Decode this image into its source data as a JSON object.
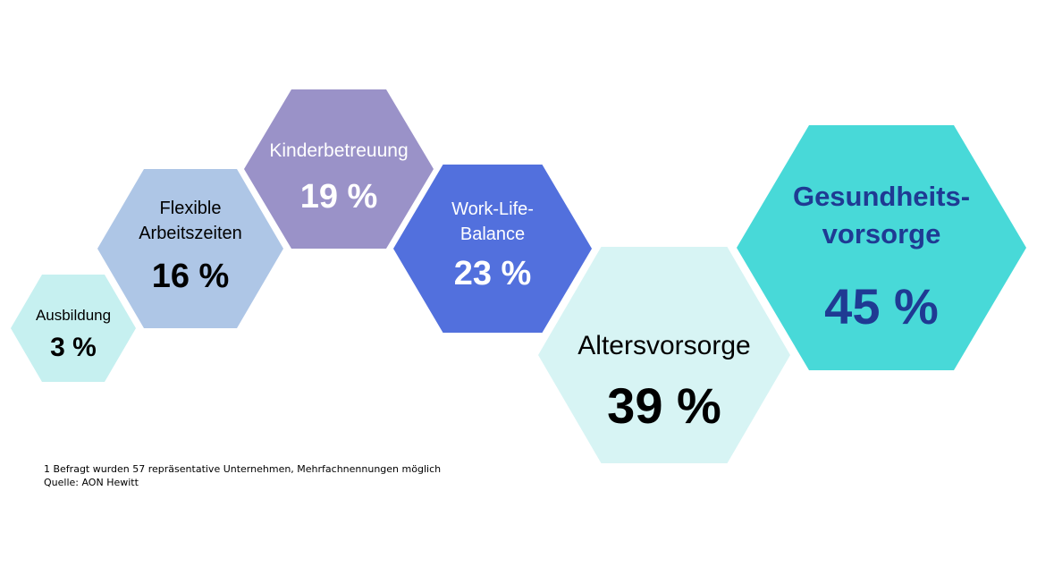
{
  "chart_data": {
    "type": "hexagon-infographic",
    "unit": "%",
    "categories": [
      {
        "label": [
          "Ausbildung"
        ],
        "value_label": "3 %",
        "value": 3,
        "fill": "#c6f0f0",
        "text_color": "#000000"
      },
      {
        "label": [
          "Flexible",
          "Arbeitszeiten"
        ],
        "value_label": "16 %",
        "value": 16,
        "fill": "#aec6e6",
        "text_color": "#000000"
      },
      {
        "label": [
          "Kinderbetreuung"
        ],
        "value_label": "19 %",
        "value": 19,
        "fill": "#9a92c8",
        "text_color": "#ffffff"
      },
      {
        "label": [
          "Work-Life-",
          "Balance"
        ],
        "value_label": "23 %",
        "value": 23,
        "fill": "#5270dd",
        "text_color": "#ffffff"
      },
      {
        "label": [
          "Altersvorsorge"
        ],
        "value_label": "39 %",
        "value": 39,
        "fill": "#d7f4f4",
        "text_color": "#000000"
      },
      {
        "label": [
          "Gesundheits-",
          "vorsorge"
        ],
        "value_label": "45 %",
        "value": 45,
        "fill": "#48d9d8",
        "text_color": "#1f3a93"
      }
    ]
  },
  "footnote": {
    "line1": "1 Befragt wurden 57 repräsentative Unternehmen, Mehrfachnennungen möglich",
    "line2": "Quelle: AON Hewitt"
  }
}
